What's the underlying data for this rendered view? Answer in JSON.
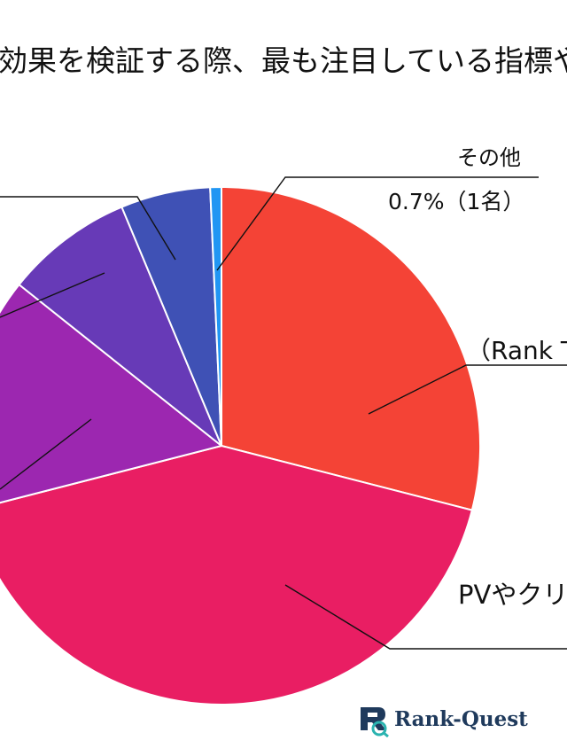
{
  "title": "効果を検証する際、最も注目している指標や",
  "labels": {
    "other_name": "その他",
    "other_value": "0.7%（1名）",
    "rank_partial": "（Rank T",
    "pv_partial": "PVやクリ"
  },
  "logo": {
    "text": "Rank-Quest",
    "icon": "rank-quest-logo-icon"
  },
  "chart_data": {
    "type": "pie",
    "start": "12 o'clock, clockwise",
    "slices": [
      {
        "label": "（Rank T",
        "percent": 29.0,
        "color": "#f44336"
      },
      {
        "label": "PVやクリ",
        "percent": 42.0,
        "color": "#e91e63"
      },
      {
        "label": "",
        "percent": 14.7,
        "color": "#9c27b0"
      },
      {
        "label": "",
        "percent": 8.0,
        "color": "#673ab7"
      },
      {
        "label": "",
        "percent": 5.6,
        "color": "#3f51b5"
      },
      {
        "label": "その他 0.7%（1名）",
        "percent": 0.7,
        "color": "#2196f3"
      }
    ],
    "data_labels": [
      "その他",
      "0.7%（1名）"
    ]
  }
}
